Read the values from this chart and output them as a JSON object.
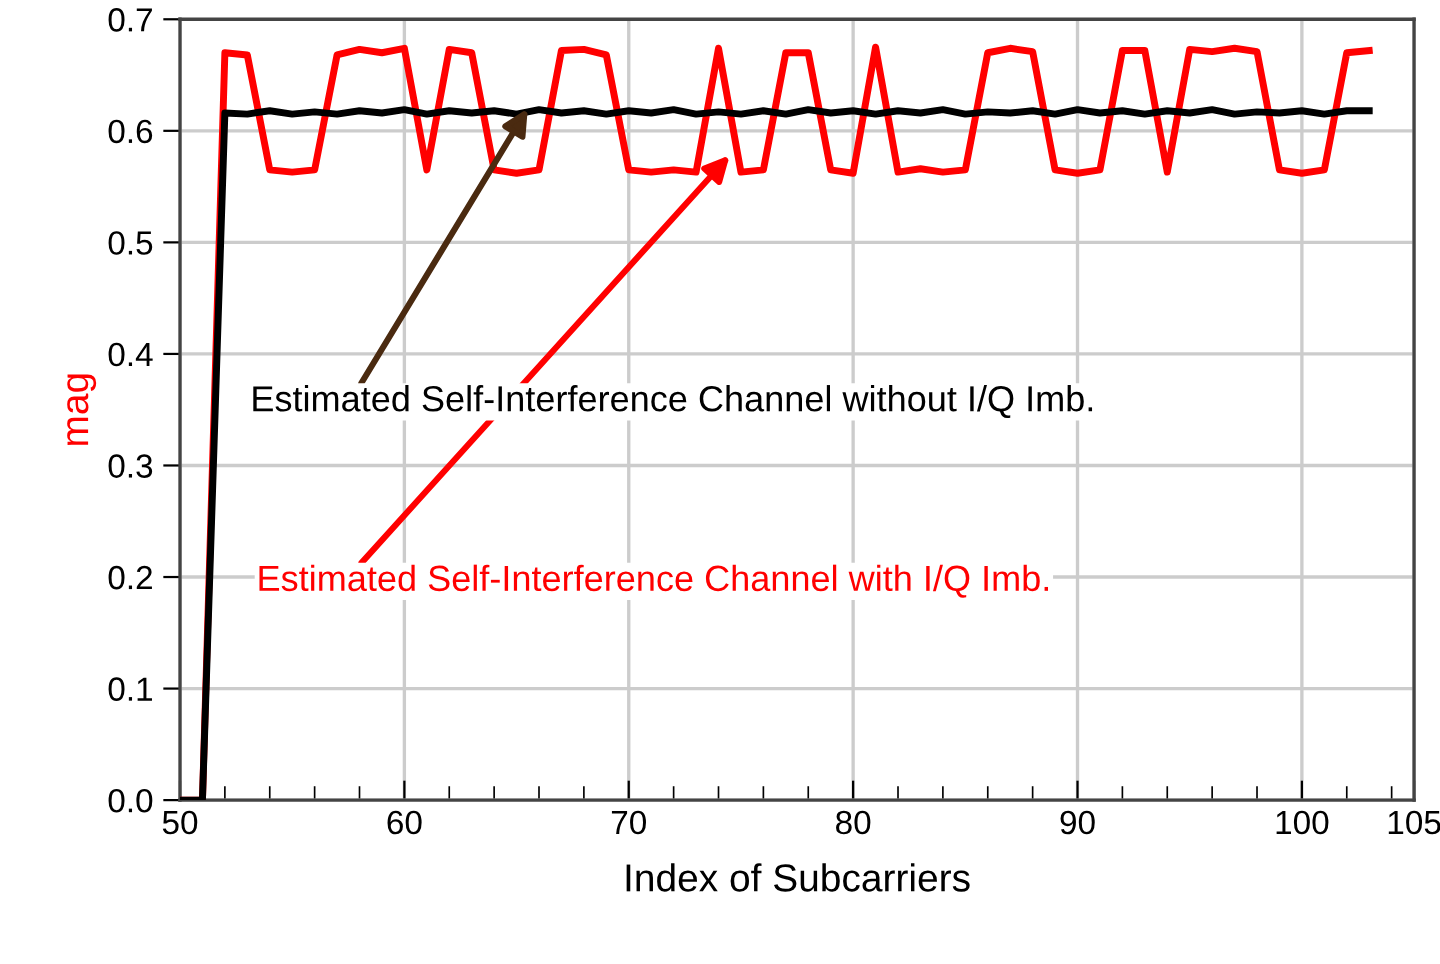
{
  "chart_data": {
    "type": "line",
    "xlabel": "Index of Subcarriers",
    "ylabel": "mag",
    "x": [
      50,
      51,
      52,
      53,
      54,
      55,
      56,
      57,
      58,
      59,
      60,
      61,
      62,
      63,
      64,
      65,
      66,
      67,
      68,
      69,
      70,
      71,
      72,
      73,
      74,
      75,
      76,
      77,
      78,
      79,
      80,
      81,
      82,
      83,
      84,
      85,
      86,
      87,
      88,
      89,
      90,
      91,
      92,
      93,
      94,
      95,
      96,
      97,
      98,
      99,
      100,
      101,
      102,
      103
    ],
    "series": [
      {
        "color": "#ff0000",
        "values": [
          0,
          0,
          0.67,
          0.668,
          0.565,
          0.563,
          0.565,
          0.668,
          0.673,
          0.67,
          0.674,
          0.565,
          0.673,
          0.67,
          0.565,
          0.562,
          0.565,
          0.672,
          0.673,
          0.668,
          0.565,
          0.563,
          0.565,
          0.563,
          0.674,
          0.563,
          0.565,
          0.67,
          0.67,
          0.565,
          0.562,
          0.675,
          0.563,
          0.566,
          0.563,
          0.565,
          0.67,
          0.674,
          0.671,
          0.565,
          0.562,
          0.565,
          0.672,
          0.672,
          0.563,
          0.673,
          0.671,
          0.674,
          0.671,
          0.565,
          0.562,
          0.565,
          0.67,
          0.672
        ]
      },
      {
        "color": "#000000",
        "values": [
          0,
          0,
          0.616,
          0.615,
          0.618,
          0.615,
          0.617,
          0.615,
          0.618,
          0.616,
          0.619,
          0.615,
          0.618,
          0.616,
          0.618,
          0.615,
          0.619,
          0.616,
          0.618,
          0.615,
          0.618,
          0.616,
          0.619,
          0.615,
          0.617,
          0.615,
          0.618,
          0.615,
          0.619,
          0.616,
          0.618,
          0.615,
          0.618,
          0.616,
          0.619,
          0.615,
          0.617,
          0.616,
          0.618,
          0.615,
          0.619,
          0.616,
          0.618,
          0.615,
          0.618,
          0.616,
          0.619,
          0.615,
          0.617,
          0.616,
          0.618,
          0.615,
          0.618,
          0.618
        ]
      }
    ],
    "annotations": [
      {
        "text": "Estimated Self-Interference Channel without I/Q Imb.",
        "x": 65.5,
        "y": 0.62
      },
      {
        "text": "Estimated Self-Interference Channel with I/Q Imb.",
        "x": 74.5,
        "y": 0.578
      }
    ],
    "xlim": [
      50,
      105
    ],
    "xticks": [
      50,
      60,
      70,
      80,
      90,
      100,
      105
    ],
    "ylim": [
      0,
      0.7
    ],
    "yticks": [
      {
        "value": 0,
        "label": "0.0"
      },
      {
        "value": 0.1,
        "label": "0.1"
      },
      {
        "value": 0.2,
        "label": "0.2"
      },
      {
        "value": 0.3,
        "label": "0.3"
      },
      {
        "value": 0.4,
        "label": "0.4"
      },
      {
        "value": 0.5,
        "label": "0.5"
      },
      {
        "value": 0.6,
        "label": "0.6"
      },
      {
        "value": 0.7,
        "label": "0.7"
      }
    ],
    "grid": true,
    "legend": false,
    "marker": "none",
    "line_style": "solid"
  }
}
